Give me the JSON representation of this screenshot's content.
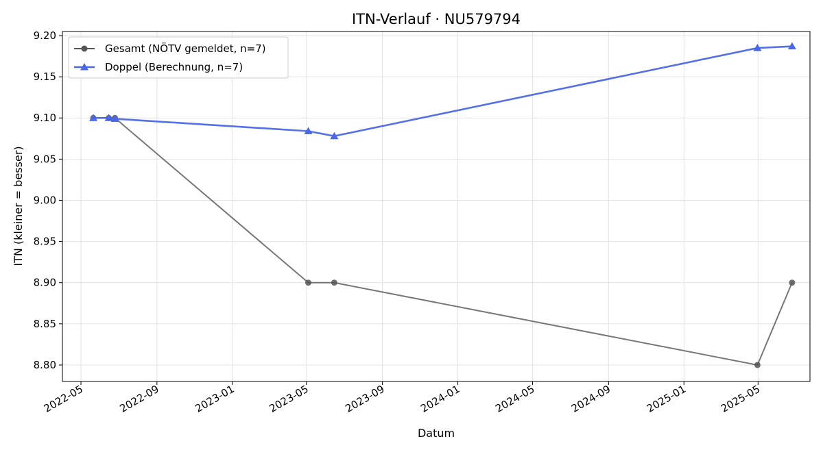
{
  "chart_data": {
    "type": "line",
    "title": "ITN-Verlauf · NU579794",
    "xlabel": "Datum",
    "ylabel": "ITN  (kleiner = besser)",
    "xlim": [
      "2022-04-01",
      "2025-07-24"
    ],
    "ylim": [
      8.78,
      9.205
    ],
    "grid": true,
    "legend_position": "upper left",
    "x_ticks": [
      "2022-05-01",
      "2022-09-01",
      "2023-01-01",
      "2023-05-01",
      "2023-09-01",
      "2024-01-01",
      "2024-05-01",
      "2024-09-01",
      "2025-01-01",
      "2025-05-01"
    ],
    "x_tick_labels": [
      "2022-05",
      "2022-09",
      "2023-01",
      "2023-05",
      "2023-09",
      "2024-01",
      "2024-05",
      "2024-09",
      "2025-01",
      "2025-05"
    ],
    "y_ticks": [
      8.8,
      8.85,
      8.9,
      8.95,
      9.0,
      9.05,
      9.1,
      9.15,
      9.2
    ],
    "y_tick_labels": [
      "8.80",
      "8.85",
      "8.90",
      "8.95",
      "9.00",
      "9.05",
      "9.10",
      "9.15",
      "9.20"
    ],
    "series": [
      {
        "name": "Gesamt (NÖTV gemeldet, n=7)",
        "color": "#555555",
        "marker": "circle",
        "x": [
          "2022-05-21",
          "2022-06-15",
          "2022-06-25",
          "2023-05-04",
          "2023-06-15",
          "2025-04-30",
          "2025-06-25"
        ],
        "values": [
          9.1,
          9.1,
          9.1,
          8.9,
          8.9,
          8.8,
          8.9
        ]
      },
      {
        "name": "Doppel (Berechnung, n=7)",
        "color": "#4a67e8",
        "marker": "triangle",
        "x": [
          "2022-05-21",
          "2022-06-15",
          "2022-06-25",
          "2023-05-04",
          "2023-06-15",
          "2025-04-30",
          "2025-06-25"
        ],
        "values": [
          9.1,
          9.1,
          9.099,
          9.084,
          9.078,
          9.185,
          9.187
        ]
      }
    ]
  }
}
